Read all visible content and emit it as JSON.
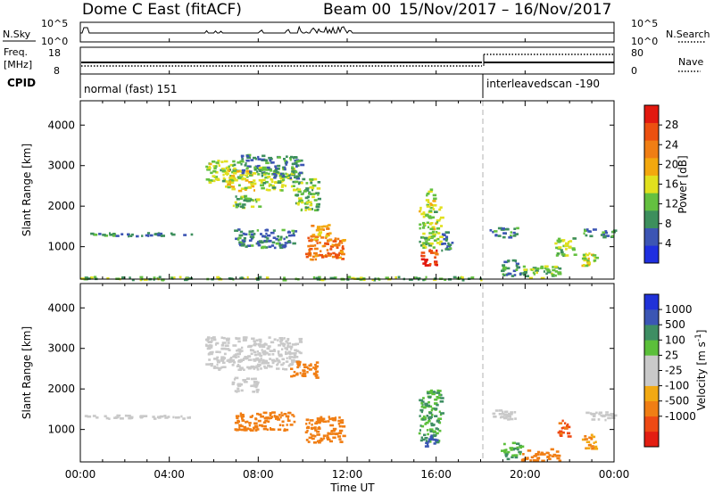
{
  "header": {
    "station": "Dome C East (fitACF)",
    "beam": "Beam 00",
    "date_range": "15/Nov/2017 – 16/Nov/2017"
  },
  "nsky_panel": {
    "left_label": "N.Sky",
    "left_ticks": [
      "10^5",
      "10^0"
    ],
    "right_ticks": [
      "10^5",
      "10^0"
    ],
    "right_label": "N.Search"
  },
  "freq_panel": {
    "left_label_line1": "Freq.",
    "left_label_line2": "[MHz]",
    "left_ticks": [
      "18",
      "8"
    ],
    "right_ticks": [
      "80",
      "0"
    ],
    "right_label": "Nave",
    "cpid_label": "CPID",
    "cpid_segments": [
      {
        "label": "normal (fast) 151",
        "start_hour": 0,
        "end_hour": 18
      },
      {
        "label": "interleavedscan -190",
        "start_hour": 18,
        "end_hour": 24
      }
    ]
  },
  "colors": {
    "power_scale": [
      "#1f2fe0",
      "#3c55b4",
      "#3d8f5d",
      "#64c040",
      "#e1e01e",
      "#f3a80e",
      "#f07e14",
      "#ec5010",
      "#e2190f"
    ],
    "velocity_scale": [
      "#e31e12",
      "#ee4a14",
      "#f07e14",
      "#f2a913",
      "#c9c9c9",
      "#c9c9c9",
      "#5bbf3a",
      "#3e8e63",
      "#3b56b4",
      "#2032d8"
    ]
  },
  "chart_data": [
    {
      "type": "heatmap",
      "name": "power",
      "xlabel": "",
      "ylabel": "Slant Range [km]",
      "xlim": [
        0,
        24
      ],
      "ylim": [
        200,
        4600
      ],
      "y_ticks": [
        1000,
        2000,
        3000,
        4000
      ],
      "colorbar_label": "Power [dB]",
      "colorbar_range": [
        0,
        32
      ],
      "colorbar_ticks": [
        4,
        8,
        12,
        16,
        20,
        24,
        28
      ],
      "patches": [
        {
          "t0": 0.0,
          "t1": 5.1,
          "r0": 1280,
          "r1": 1370,
          "v": 8
        },
        {
          "t0": 5.6,
          "t1": 7.2,
          "r0": 2600,
          "r1": 3150,
          "v": 14
        },
        {
          "t0": 6.4,
          "t1": 7.8,
          "r0": 2400,
          "r1": 2900,
          "v": 16
        },
        {
          "t0": 7.2,
          "t1": 8.6,
          "r0": 2800,
          "r1": 3300,
          "v": 8
        },
        {
          "t0": 8.0,
          "t1": 9.6,
          "r0": 2400,
          "r1": 3000,
          "v": 14
        },
        {
          "t0": 8.6,
          "t1": 9.9,
          "r0": 2700,
          "r1": 3250,
          "v": 8
        },
        {
          "t0": 6.8,
          "t1": 8.0,
          "r0": 1950,
          "r1": 2300,
          "v": 12
        },
        {
          "t0": 9.6,
          "t1": 10.7,
          "r0": 1900,
          "r1": 2700,
          "v": 12
        },
        {
          "t0": 6.9,
          "t1": 9.6,
          "r0": 1000,
          "r1": 1450,
          "v": 8
        },
        {
          "t0": 10.1,
          "t1": 11.8,
          "r0": 700,
          "r1": 1250,
          "v": 24
        },
        {
          "t0": 10.3,
          "t1": 11.2,
          "r0": 1150,
          "r1": 1600,
          "v": 20
        },
        {
          "t0": 15.3,
          "t1": 16.0,
          "r0": 550,
          "r1": 1000,
          "v": 28
        },
        {
          "t0": 15.2,
          "t1": 16.2,
          "r0": 1000,
          "r1": 2000,
          "v": 14
        },
        {
          "t0": 15.5,
          "t1": 15.9,
          "r0": 2000,
          "r1": 2450,
          "v": 16
        },
        {
          "t0": 16.2,
          "t1": 16.7,
          "r0": 900,
          "r1": 1400,
          "v": 8
        },
        {
          "t0": 18.9,
          "t1": 19.8,
          "r0": 300,
          "r1": 700,
          "v": 8
        },
        {
          "t0": 18.4,
          "t1": 19.6,
          "r0": 1250,
          "r1": 1500,
          "v": 8
        },
        {
          "t0": 19.8,
          "t1": 21.5,
          "r0": 250,
          "r1": 550,
          "v": 12
        },
        {
          "t0": 21.3,
          "t1": 22.2,
          "r0": 800,
          "r1": 1250,
          "v": 14
        },
        {
          "t0": 22.5,
          "t1": 23.2,
          "r0": 500,
          "r1": 900,
          "v": 16
        },
        {
          "t0": 22.6,
          "t1": 24.0,
          "r0": 1250,
          "r1": 1450,
          "v": 8
        },
        {
          "t0": 0.0,
          "t1": 18.0,
          "r0": 200,
          "r1": 280,
          "v": 12
        }
      ]
    },
    {
      "type": "heatmap",
      "name": "velocity",
      "xlabel": "Time UT",
      "ylabel": "Slant Range [km]",
      "xlim": [
        0,
        24
      ],
      "ylim": [
        200,
        4600
      ],
      "x_ticks": [
        "00:00",
        "04:00",
        "08:00",
        "12:00",
        "16:00",
        "20:00",
        "00:00"
      ],
      "y_ticks": [
        1000,
        2000,
        3000,
        4000
      ],
      "colorbar_label": "Velocity [m s^-1]",
      "colorbar_ticks": [
        "1000",
        "500",
        "100",
        "25",
        "-25",
        "-100",
        "-500",
        "-1000"
      ],
      "patches": [
        {
          "t0": 0.0,
          "t1": 5.1,
          "r0": 1290,
          "r1": 1380,
          "v": 0
        },
        {
          "t0": 5.6,
          "t1": 9.9,
          "r0": 2500,
          "r1": 3300,
          "v": 0
        },
        {
          "t0": 6.8,
          "t1": 8.0,
          "r0": 1950,
          "r1": 2300,
          "v": 0
        },
        {
          "t0": 9.4,
          "t1": 10.6,
          "r0": 2300,
          "r1": 2700,
          "v": -300
        },
        {
          "t0": 6.9,
          "t1": 9.6,
          "r0": 1000,
          "r1": 1450,
          "v": -300
        },
        {
          "t0": 10.1,
          "t1": 11.8,
          "r0": 700,
          "r1": 1350,
          "v": -300
        },
        {
          "t0": 15.2,
          "t1": 16.2,
          "r0": 700,
          "r1": 2000,
          "v": 100
        },
        {
          "t0": 15.4,
          "t1": 16.0,
          "r0": 550,
          "r1": 900,
          "v": 700
        },
        {
          "t0": 18.9,
          "t1": 19.8,
          "r0": 300,
          "r1": 700,
          "v": 100
        },
        {
          "t0": 18.4,
          "t1": 19.6,
          "r0": 1250,
          "r1": 1500,
          "v": 0
        },
        {
          "t0": 19.8,
          "t1": 21.5,
          "r0": 250,
          "r1": 550,
          "v": -200
        },
        {
          "t0": 21.4,
          "t1": 22.0,
          "r0": 850,
          "r1": 1250,
          "v": -700
        },
        {
          "t0": 22.5,
          "t1": 23.2,
          "r0": 550,
          "r1": 900,
          "v": -100
        },
        {
          "t0": 22.6,
          "t1": 24.0,
          "r0": 1250,
          "r1": 1450,
          "v": 0
        }
      ]
    }
  ]
}
